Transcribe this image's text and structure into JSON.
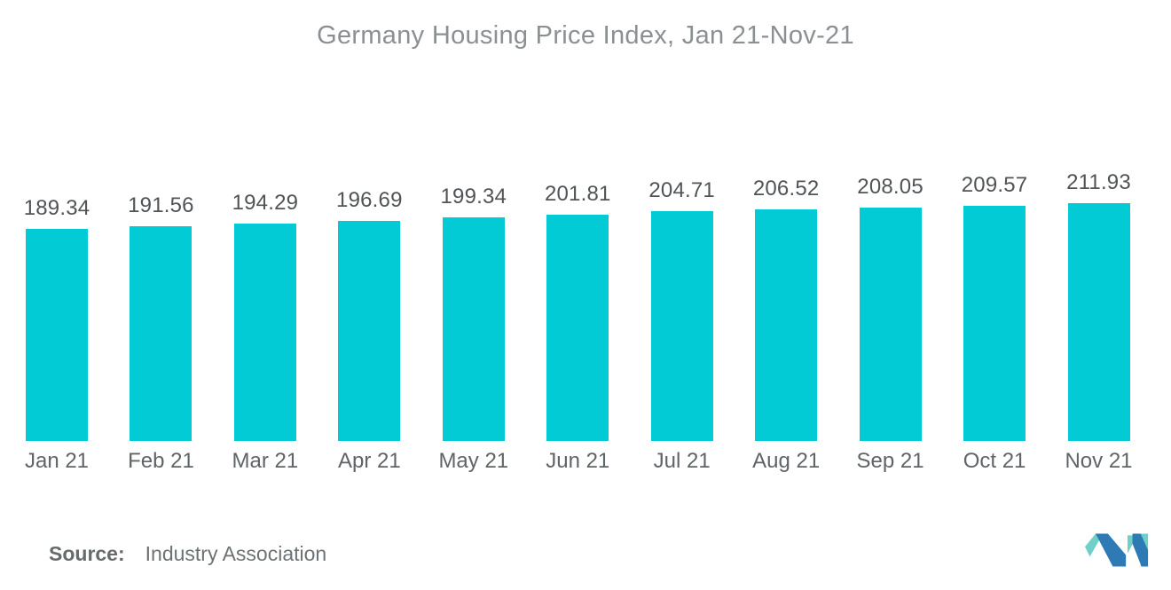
{
  "title": "Germany Housing Price Index, Jan 21-Nov-21",
  "source": {
    "label": "Source:",
    "value": "Industry Association"
  },
  "logo": {
    "name": "mordor-intelligence-logo",
    "blue": "#2e7ab5",
    "teal": "#6fd0ca"
  },
  "colors": {
    "bar": "#03cbd5",
    "title_text": "#8b9093",
    "value_label_text": "#505456",
    "category_label_text": "#5f6467",
    "source_text": "#6d7275",
    "background": "#ffffff"
  },
  "chart_data": {
    "type": "bar",
    "title": "Germany Housing Price Index, Jan 21-Nov-21",
    "categories": [
      "Jan 21",
      "Feb 21",
      "Mar 21",
      "Apr 21",
      "May 21",
      "Jun 21",
      "Jul 21",
      "Aug 21",
      "Sep 21",
      "Oct 21",
      "Nov 21"
    ],
    "values": [
      189.34,
      191.56,
      194.29,
      196.69,
      199.34,
      201.81,
      204.71,
      206.52,
      208.05,
      209.57,
      211.93
    ],
    "xlabel": "",
    "ylabel": "",
    "ylim": [
      0,
      220
    ],
    "bar_color": "#03cbd5",
    "value_labels": "above-bar",
    "grid": false,
    "legend": false,
    "axes_visible": false
  }
}
